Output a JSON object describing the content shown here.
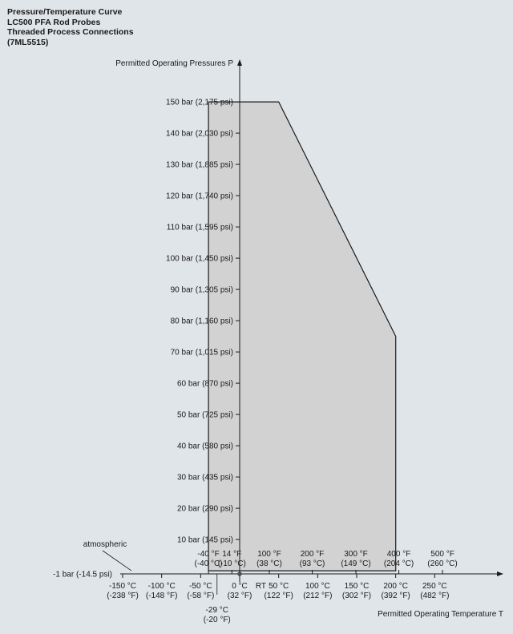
{
  "title": {
    "lines": [
      "Pressure/Temperature Curve",
      "LC500 PFA Rod Probes",
      "Threaded Process Connections",
      "(7ML5515)"
    ]
  },
  "chart_data": {
    "type": "area",
    "xlabel": "Permitted Operating Temperature T",
    "ylabel": "Permitted Operating Pressures P",
    "xlim": [
      -150,
      250
    ],
    "ylim": [
      -1,
      150
    ],
    "x_unit": "°C",
    "y_unit": "bar",
    "series": [
      {
        "x": [
          -40,
          -40,
          50,
          200,
          200,
          -40
        ],
        "y": [
          0,
          150,
          150,
          75,
          0,
          0
        ]
      }
    ],
    "y_ticks": [
      {
        "value": 150,
        "label": "150 bar (2,175 psi)"
      },
      {
        "value": 140,
        "label": "140 bar (2,030 psi)"
      },
      {
        "value": 130,
        "label": "130 bar (1,885 psi)"
      },
      {
        "value": 120,
        "label": "120 bar (1,740 psi)"
      },
      {
        "value": 110,
        "label": "110 bar (1,595 psi)"
      },
      {
        "value": 100,
        "label": "100 bar (1,450 psi)"
      },
      {
        "value": 90,
        "label": "90 bar (1,305 psi)"
      },
      {
        "value": 80,
        "label": "80 bar (1,160 psi)"
      },
      {
        "value": 70,
        "label": "70 bar (1,015 psi)"
      },
      {
        "value": 60,
        "label": "60 bar (870 psi)"
      },
      {
        "value": 50,
        "label": "50 bar (725 psi)"
      },
      {
        "value": 40,
        "label": "40 bar (580 psi)"
      },
      {
        "value": 30,
        "label": "30 bar (435 psi)"
      },
      {
        "value": 20,
        "label": "20 bar (290 psi)"
      },
      {
        "value": 10,
        "label": "10 bar (145 psi)"
      }
    ],
    "y_bottom_label": "-1 bar (-14.5 psi)",
    "atmospheric_label": "atmospheric",
    "x_ticks_celsius_below": [
      {
        "value": -150,
        "lines": [
          "-150 °C",
          "(-238 °F)"
        ]
      },
      {
        "value": -100,
        "lines": [
          "-100 °C",
          "(-148 °F)"
        ]
      },
      {
        "value": -50,
        "lines": [
          "-50 °C",
          "(-58 °F)"
        ]
      },
      {
        "value": 0,
        "lines": [
          "0 °C",
          "(32 °F)"
        ]
      },
      {
        "value": 50,
        "lines": [
          "50 °C",
          "(122 °F)"
        ]
      },
      {
        "value": 100,
        "lines": [
          "100 °C",
          "(212 °F)"
        ]
      },
      {
        "value": 150,
        "lines": [
          "150 °C",
          "(302 °F)"
        ]
      },
      {
        "value": 200,
        "lines": [
          "200 °C",
          "(392 °F)"
        ]
      },
      {
        "value": 250,
        "lines": [
          "250 °C",
          "(482 °F)"
        ]
      }
    ],
    "x_ticks_fahrenheit_above": [
      {
        "value": -40,
        "lines": [
          "-40 °F",
          "(-40 °C)"
        ]
      },
      {
        "value": -10,
        "lines": [
          "14 °F",
          "(-10 °C)"
        ]
      },
      {
        "value": 38,
        "lines": [
          "100 °F",
          "(38 °C)"
        ]
      },
      {
        "value": 93,
        "lines": [
          "200 °F",
          "(93 °C)"
        ]
      },
      {
        "value": 149,
        "lines": [
          "300 °F",
          "(149 °C)"
        ]
      },
      {
        "value": 204,
        "lines": [
          "400 °F",
          "(204 °C)"
        ]
      },
      {
        "value": 260,
        "lines": [
          "500 °F",
          "(260 °C)"
        ]
      }
    ],
    "x_extra_labels": [
      {
        "value": -29,
        "lines": [
          "-29 °C",
          "(-20 °F)"
        ]
      },
      {
        "value": 20,
        "lines": [
          "RT"
        ]
      }
    ],
    "grid": false,
    "colors": {
      "fill": "#d2d2d2",
      "line": "#1a1a1a",
      "background": "#e0e5e9"
    }
  }
}
